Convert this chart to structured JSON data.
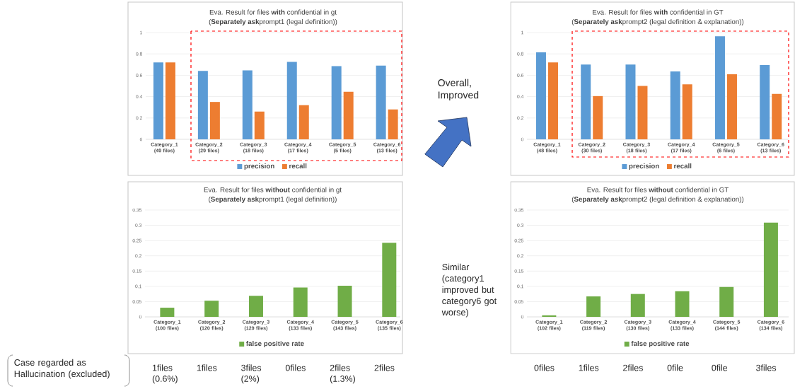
{
  "chart_data": [
    {
      "type": "bar",
      "title": "Eva. Result for files **with** confidential in gt",
      "subtitle": "(**Separately ask**prompt1 (legal definition))",
      "categories": [
        "Category_1 (49 files)",
        "Category_2 (29 files)",
        "Category_3 (18 files)",
        "Category_4 (17 files)",
        "Category_5 (5 files)",
        "Category_6 (13 files)"
      ],
      "series": [
        {
          "name": "precision",
          "color": "#5b9bd5",
          "values": [
            0.72,
            0.64,
            0.645,
            0.725,
            0.685,
            0.69
          ]
        },
        {
          "name": "recall",
          "color": "#ed7d31",
          "values": [
            0.72,
            0.35,
            0.26,
            0.32,
            0.445,
            0.28
          ]
        }
      ],
      "ylim": [
        0,
        1
      ],
      "yticks": [
        0,
        0.2,
        0.4,
        0.6,
        0.8,
        1
      ],
      "grid": "y",
      "legend": "bottom"
    },
    {
      "type": "bar",
      "title": "Eva. Result for files **with** confidential in GT",
      "subtitle": "(**Separately ask**prompt2 (legal definition & explanation))",
      "categories": [
        "Category_1 (48 files)",
        "Category_2 (30 files)",
        "Category_3 (18 files)",
        "Category_4 (17 files)",
        "Category_5 (6 files)",
        "Category_6 (13 files)"
      ],
      "series": [
        {
          "name": "precision",
          "color": "#5b9bd5",
          "values": [
            0.815,
            0.7,
            0.7,
            0.635,
            0.965,
            0.695
          ]
        },
        {
          "name": "recall",
          "color": "#ed7d31",
          "values": [
            0.72,
            0.405,
            0.5,
            0.515,
            0.61,
            0.425
          ]
        }
      ],
      "ylim": [
        0,
        1
      ],
      "yticks": [
        0,
        0.2,
        0.4,
        0.6,
        0.8,
        1
      ],
      "grid": "y",
      "legend": "bottom",
      "annotations": [
        "Overall, Improved"
      ]
    },
    {
      "type": "bar",
      "title": "Eva. Result for files **without** confidential in gt",
      "subtitle": "(**Separately ask**prompt1 (legal definition))",
      "categories": [
        "Category_1 (100 files)",
        "Category_2 (120 files)",
        "Category_3 (129 files)",
        "Category_4 (133 files)",
        "Category_5 (143 files)",
        "Category_6 (135 files)"
      ],
      "series": [
        {
          "name": "false positive rate",
          "color": "#70ad47",
          "values": [
            0.03,
            0.053,
            0.069,
            0.096,
            0.102,
            0.243
          ]
        }
      ],
      "ylim": [
        0,
        0.35
      ],
      "yticks": [
        0,
        0.05,
        0.1,
        0.15,
        0.2,
        0.25,
        0.3,
        0.35
      ],
      "grid": "y",
      "legend": "bottom",
      "annotations": [
        "Case regarded as Hallucination (excluded)",
        "1files (0.6%)",
        "1files",
        "3files (2%)",
        "0files",
        "2files (1.3%)",
        "2files"
      ]
    },
    {
      "type": "bar",
      "title": "Eva. Result for files **without** confidential in GT",
      "subtitle": "(**Separately ask**prompt2 (legal definition & explanation))",
      "categories": [
        "Category_1 (102 files)",
        "Category_2 (119 files)",
        "Category_3 (130 files)",
        "Category_4 (133 files)",
        "Category_5 (144 files)",
        "Category_6 (134 files)"
      ],
      "series": [
        {
          "name": "false positive rate",
          "color": "#70ad47",
          "values": [
            0.005,
            0.067,
            0.075,
            0.084,
            0.098,
            0.309
          ]
        }
      ],
      "ylim": [
        0,
        0.35
      ],
      "yticks": [
        0,
        0.05,
        0.1,
        0.15,
        0.2,
        0.25,
        0.3,
        0.35
      ],
      "grid": "y",
      "legend": "bottom",
      "annotations": [
        "Similar (category1 improved but category6 got worse)",
        "0files",
        "1files",
        "2files",
        "0file",
        "0file",
        "3files"
      ]
    }
  ]
}
